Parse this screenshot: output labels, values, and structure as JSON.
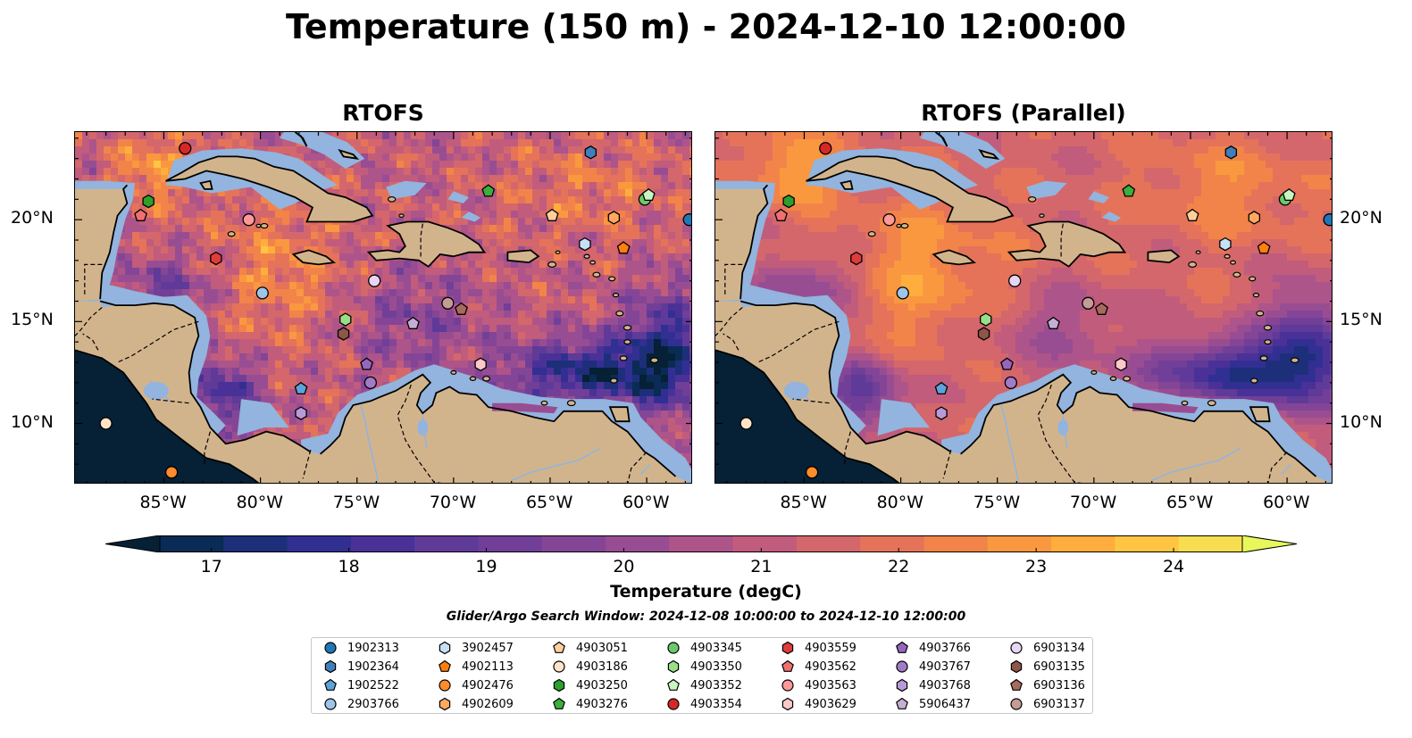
{
  "title": "Temperature (150 m) - 2024-12-10 12:00:00",
  "panels": [
    {
      "title": "RTOFS"
    },
    {
      "title": "RTOFS (Parallel)"
    }
  ],
  "axes": {
    "lon_ticks": [
      "85°W",
      "80°W",
      "75°W",
      "70°W",
      "65°W",
      "60°W"
    ],
    "lat_ticks": [
      "20°N",
      "15°N",
      "10°N"
    ]
  },
  "colorbar": {
    "label": "Temperature (degC)",
    "ticks": [
      "17",
      "18",
      "19",
      "20",
      "21",
      "22",
      "23",
      "24"
    ],
    "min": 16.75,
    "max": 24.5,
    "extend": "both",
    "colors": [
      "#062036",
      "#0a2b55",
      "#1d2f7a",
      "#322f92",
      "#4a3197",
      "#5f3a98",
      "#713f97",
      "#844596",
      "#984d92",
      "#ad548b",
      "#c15c7c",
      "#d4676c",
      "#e4735a",
      "#f28449",
      "#fa9840",
      "#ffae3d",
      "#ffc542",
      "#f7de50",
      "#e8f85c"
    ]
  },
  "search_window": "Glider/Argo Search Window: 2024-12-08 10:00:00 to 2024-12-10 12:00:00",
  "legend": [
    {
      "id": "1902313",
      "marker": "circle",
      "color": "#1f77b4"
    },
    {
      "id": "1902364",
      "marker": "hexagon",
      "color": "#3f7fba"
    },
    {
      "id": "1902522",
      "marker": "pentagon",
      "color": "#5ba3d9"
    },
    {
      "id": "2903766",
      "marker": "circle",
      "color": "#9ec4ea"
    },
    {
      "id": "3902457",
      "marker": "hexagon",
      "color": "#c6e0f5"
    },
    {
      "id": "4902113",
      "marker": "pentagon",
      "color": "#ff7f0e"
    },
    {
      "id": "4902476",
      "marker": "circle",
      "color": "#ff8c2a"
    },
    {
      "id": "4902609",
      "marker": "hexagon",
      "color": "#ffa860"
    },
    {
      "id": "4903051",
      "marker": "pentagon",
      "color": "#ffcf9c"
    },
    {
      "id": "4903186",
      "marker": "circle",
      "color": "#ffe3c8"
    },
    {
      "id": "4903250",
      "marker": "hexagon",
      "color": "#2ca02c"
    },
    {
      "id": "4903276",
      "marker": "pentagon",
      "color": "#3caf3c"
    },
    {
      "id": "4903345",
      "marker": "circle",
      "color": "#6cc86c"
    },
    {
      "id": "4903350",
      "marker": "hexagon",
      "color": "#98df8a"
    },
    {
      "id": "4903352",
      "marker": "pentagon",
      "color": "#c8f5c0"
    },
    {
      "id": "4903354",
      "marker": "circle",
      "color": "#d62728"
    },
    {
      "id": "4903559",
      "marker": "hexagon",
      "color": "#e03c3c"
    },
    {
      "id": "4903562",
      "marker": "pentagon",
      "color": "#f07070"
    },
    {
      "id": "4903563",
      "marker": "circle",
      "color": "#ff9896"
    },
    {
      "id": "4903629",
      "marker": "hexagon",
      "color": "#ffc8c8"
    },
    {
      "id": "4903766",
      "marker": "pentagon",
      "color": "#9467bd"
    },
    {
      "id": "4903767",
      "marker": "circle",
      "color": "#a07cc8"
    },
    {
      "id": "4903768",
      "marker": "hexagon",
      "color": "#b89ad8"
    },
    {
      "id": "5906437",
      "marker": "pentagon",
      "color": "#c5b0d5"
    },
    {
      "id": "6903134",
      "marker": "circle",
      "color": "#e6d5f5"
    },
    {
      "id": "6903135",
      "marker": "hexagon",
      "color": "#8c564b"
    },
    {
      "id": "6903136",
      "marker": "pentagon",
      "color": "#a66a5e"
    },
    {
      "id": "6903137",
      "marker": "circle",
      "color": "#c49c94"
    }
  ],
  "floats": [
    {
      "id": "1902313",
      "lon": -57.8,
      "lat": 20.0
    },
    {
      "id": "1902364",
      "lon": -62.9,
      "lat": 23.3
    },
    {
      "id": "1902522",
      "lon": -77.9,
      "lat": 11.7
    },
    {
      "id": "2903766",
      "lon": -79.9,
      "lat": 16.4
    },
    {
      "id": "3902457",
      "lon": -63.2,
      "lat": 18.8
    },
    {
      "id": "4902113",
      "lon": -61.2,
      "lat": 18.6
    },
    {
      "id": "4902476",
      "lon": -84.6,
      "lat": 7.6
    },
    {
      "id": "4902609",
      "lon": -61.7,
      "lat": 20.1
    },
    {
      "id": "4903051",
      "lon": -64.9,
      "lat": 20.2
    },
    {
      "id": "4903186",
      "lon": -88.0,
      "lat": 10.0
    },
    {
      "id": "4903250",
      "lon": -85.8,
      "lat": 20.9
    },
    {
      "id": "4903276",
      "lon": -68.2,
      "lat": 21.4
    },
    {
      "id": "4903345",
      "lon": -60.1,
      "lat": 21.0
    },
    {
      "id": "4903350",
      "lon": -75.6,
      "lat": 15.1
    },
    {
      "id": "4903352",
      "lon": -59.9,
      "lat": 21.2
    },
    {
      "id": "4903354",
      "lon": -83.9,
      "lat": 23.5
    },
    {
      "id": "4903559",
      "lon": -82.3,
      "lat": 18.1
    },
    {
      "id": "4903562",
      "lon": -86.2,
      "lat": 20.2
    },
    {
      "id": "4903563",
      "lon": -80.6,
      "lat": 20.0
    },
    {
      "id": "4903629",
      "lon": -68.6,
      "lat": 12.9
    },
    {
      "id": "4903766",
      "lon": -74.5,
      "lat": 12.9
    },
    {
      "id": "4903767",
      "lon": -74.3,
      "lat": 12.0
    },
    {
      "id": "4903768",
      "lon": -77.9,
      "lat": 10.5
    },
    {
      "id": "5906437",
      "lon": -72.1,
      "lat": 14.9
    },
    {
      "id": "6903134",
      "lon": -74.1,
      "lat": 17.0
    },
    {
      "id": "6903135",
      "lon": -75.7,
      "lat": 14.4
    },
    {
      "id": "6903136",
      "lon": -69.6,
      "lat": 15.6
    },
    {
      "id": "6903137",
      "lon": -70.3,
      "lat": 15.9
    }
  ]
}
